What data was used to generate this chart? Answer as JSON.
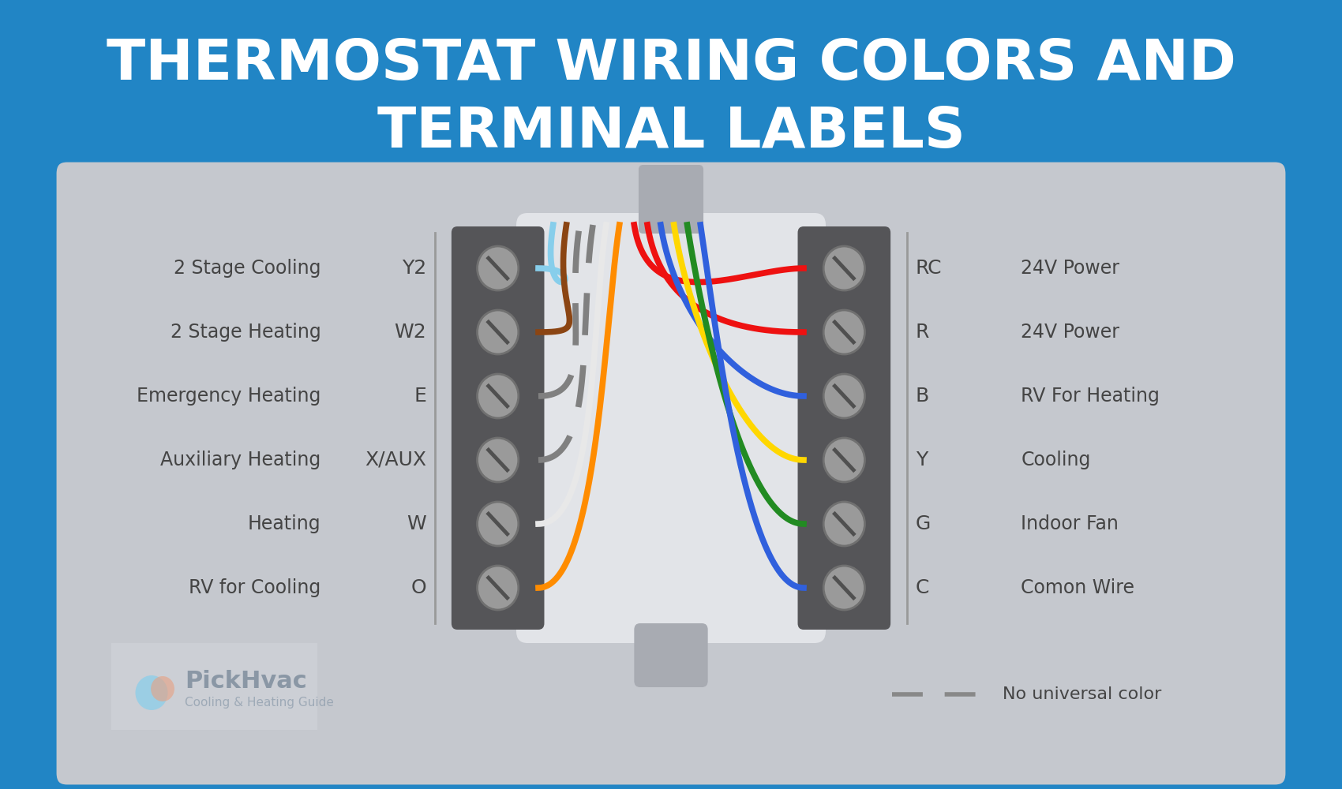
{
  "title_line1": "THERMOSTAT WIRING COLORS AND",
  "title_line2": "TERMINAL LABELS",
  "title_bg": "#2185C5",
  "body_bg": "#C5C8CE",
  "title_text_color": "#FFFFFF",
  "connector_bg": "#555558",
  "center_bg": "#E2E4E8",
  "left_terminals": [
    "Y2",
    "W2",
    "E",
    "X/AUX",
    "W",
    "O"
  ],
  "right_terminals": [
    "RC",
    "R",
    "B",
    "Y",
    "G",
    "C"
  ],
  "left_labels": [
    "2 Stage Cooling",
    "2 Stage Heating",
    "Emergency Heating",
    "Auxiliary Heating",
    "Heating",
    "RV for Cooling"
  ],
  "right_labels": [
    "24V Power",
    "24V Power",
    "RV For Heating",
    "Cooling",
    "Indoor Fan",
    "Comon Wire"
  ],
  "left_wire_colors": [
    "#87CEEB",
    "#8B4513",
    "#808080",
    "#808080",
    "#E8E8E8",
    "#FF8C00"
  ],
  "left_wire_dashed": [
    false,
    false,
    true,
    true,
    false,
    false
  ],
  "right_wire_colors": [
    "#EE1111",
    "#EE1111",
    "#3060DD",
    "#FFD700",
    "#228B22",
    "#3060DD"
  ],
  "logo_text": "PickHvac",
  "logo_subtext": "Cooling & Heating Guide",
  "legend_text": "No universal color",
  "body_text_color": "#444444",
  "screw_face": "#9A9A9A",
  "screw_edge": "#707070"
}
